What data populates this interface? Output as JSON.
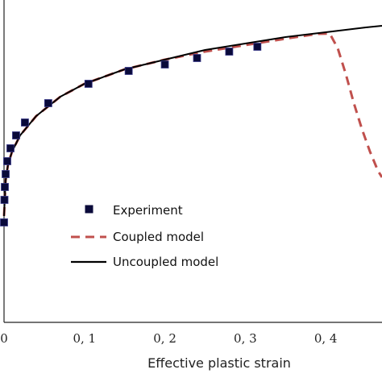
{
  "chart_data": {
    "type": "line",
    "title": "",
    "xlabel": "Effective plastic strain",
    "ylabel": "",
    "xlim": [
      0,
      0.47
    ],
    "ylim": [
      0,
      1
    ],
    "x_ticks": [
      0,
      0.1,
      0.2,
      0.3,
      0.4
    ],
    "x_tick_labels": [
      "0",
      "0, 1",
      "0, 2",
      "0, 3",
      "0, 4"
    ],
    "grid": false,
    "legend_position": "center-left",
    "series": [
      {
        "name": "Experiment",
        "style": "markers",
        "marker": "square",
        "color": "#0a0a3a",
        "x": [
          0.0,
          0.0005,
          0.001,
          0.002,
          0.004,
          0.008,
          0.015,
          0.026,
          0.055,
          0.105,
          0.155,
          0.2,
          0.24,
          0.28,
          0.315
        ],
        "y": [
          0.31,
          0.38,
          0.42,
          0.46,
          0.5,
          0.54,
          0.58,
          0.62,
          0.68,
          0.74,
          0.78,
          0.8,
          0.82,
          0.84,
          0.855
        ]
      },
      {
        "name": "Coupled model",
        "style": "dashed",
        "color": "#c0504d",
        "x": [
          0.0,
          0.002,
          0.005,
          0.01,
          0.02,
          0.04,
          0.07,
          0.1,
          0.15,
          0.2,
          0.25,
          0.3,
          0.35,
          0.39,
          0.405,
          0.415,
          0.425,
          0.435,
          0.445,
          0.455,
          0.465,
          0.47
        ],
        "y": [
          0.33,
          0.44,
          0.49,
          0.53,
          0.58,
          0.64,
          0.7,
          0.74,
          0.785,
          0.815,
          0.84,
          0.86,
          0.88,
          0.895,
          0.896,
          0.85,
          0.77,
          0.68,
          0.6,
          0.53,
          0.47,
          0.45
        ]
      },
      {
        "name": "Uncoupled model",
        "style": "solid",
        "color": "#000000",
        "x": [
          0.0,
          0.002,
          0.005,
          0.01,
          0.02,
          0.04,
          0.07,
          0.1,
          0.15,
          0.2,
          0.25,
          0.3,
          0.35,
          0.4,
          0.45,
          0.47
        ],
        "y": [
          0.33,
          0.44,
          0.49,
          0.53,
          0.58,
          0.64,
          0.7,
          0.74,
          0.785,
          0.815,
          0.845,
          0.865,
          0.885,
          0.9,
          0.915,
          0.92
        ]
      }
    ]
  }
}
